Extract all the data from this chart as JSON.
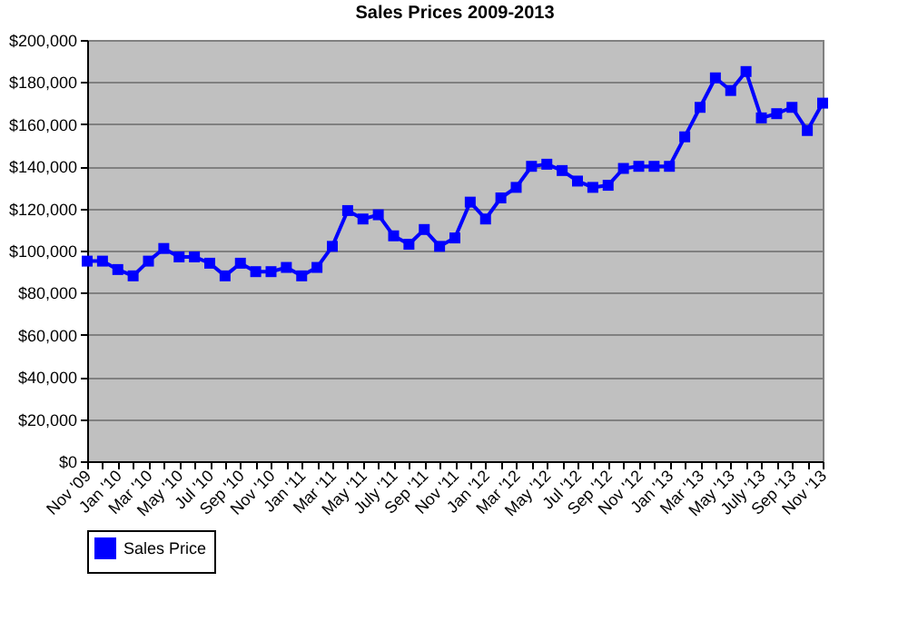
{
  "chart_data": {
    "type": "line",
    "title": "Sales Prices 2009-2013",
    "categories": [
      "Nov '09",
      null,
      "Jan '10",
      null,
      "Mar '10",
      null,
      "May '10",
      null,
      "Jul '10",
      null,
      "Sep '10",
      null,
      "Nov '10",
      null,
      "Jan '11",
      null,
      "Mar '11",
      null,
      "May '11",
      null,
      "July '11",
      null,
      "Sep '11",
      null,
      "Nov '11",
      null,
      "Jan '12",
      null,
      "Mar '12",
      null,
      "May '12",
      null,
      "Jul '12",
      null,
      "Sep '12",
      null,
      "Nov '12",
      null,
      "Jan '13",
      null,
      "Mar '13",
      null,
      "May '13",
      null,
      "July '13",
      null,
      "Sep '13",
      null,
      "Nov '13"
    ],
    "series": [
      {
        "name": "Sales Price",
        "color": "#0000ff",
        "values": [
          95000,
          95000,
          91000,
          88000,
          95000,
          101000,
          97000,
          97000,
          94000,
          88000,
          94000,
          90000,
          90000,
          92000,
          88000,
          92000,
          102000,
          119000,
          115000,
          117000,
          107000,
          103000,
          110000,
          102000,
          106000,
          123000,
          115000,
          125000,
          130000,
          140000,
          141000,
          138000,
          133000,
          130000,
          131000,
          139000,
          140000,
          140000,
          140000,
          154000,
          168000,
          182000,
          176000,
          185000,
          163000,
          165000,
          168000,
          157000,
          170000
        ]
      }
    ],
    "ylim": [
      0,
      200000
    ],
    "yticks": [
      {
        "value": 0,
        "label": "$0"
      },
      {
        "value": 20000,
        "label": "$20,000"
      },
      {
        "value": 40000,
        "label": "$40,000"
      },
      {
        "value": 60000,
        "label": "$60,000"
      },
      {
        "value": 80000,
        "label": "$80,000"
      },
      {
        "value": 100000,
        "label": "$100,000"
      },
      {
        "value": 120000,
        "label": "$120,000"
      },
      {
        "value": 140000,
        "label": "$140,000"
      },
      {
        "value": 160000,
        "label": "$160,000"
      },
      {
        "value": 180000,
        "label": "$180,000"
      },
      {
        "value": 200000,
        "label": "$200,000"
      }
    ],
    "grid": "y",
    "legend": "bottom",
    "marker": "square",
    "line_style": "solid"
  }
}
